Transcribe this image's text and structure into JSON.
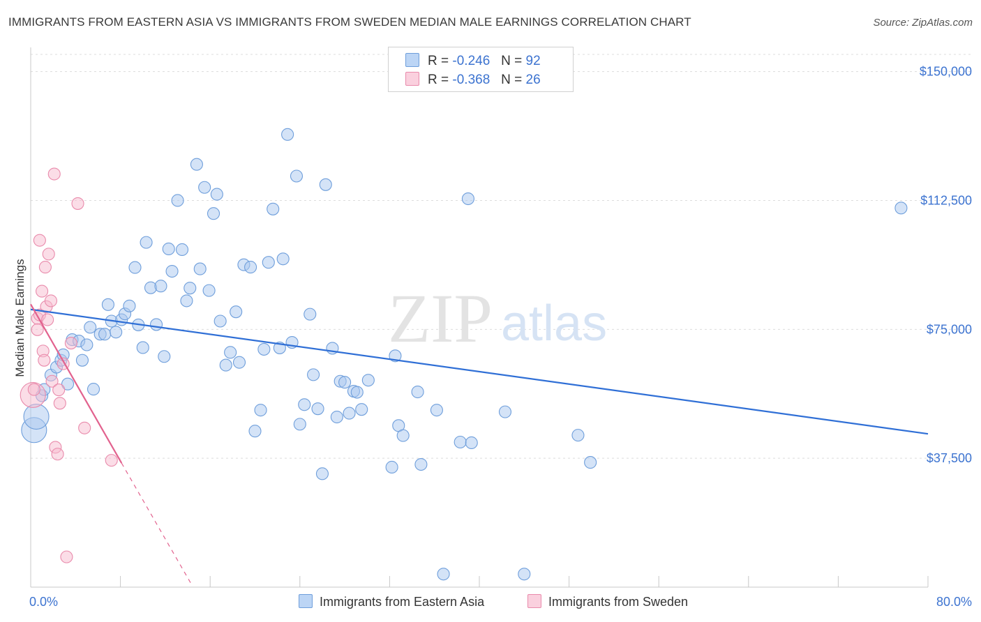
{
  "header": {
    "title": "IMMIGRANTS FROM EASTERN ASIA VS IMMIGRANTS FROM SWEDEN MEDIAN MALE EARNINGS CORRELATION CHART",
    "source": "Source: ZipAtlas.com"
  },
  "watermark": {
    "zip": "ZIP",
    "atlas": "atlas"
  },
  "legend_top": [
    {
      "r_label": "R =",
      "r_value": "-0.246",
      "n_label": "N =",
      "n_value": "92"
    },
    {
      "r_label": "R =",
      "r_value": "-0.368",
      "n_label": "N =",
      "n_value": "26"
    }
  ],
  "legend_bottom": [
    {
      "label": "Immigrants from Eastern Asia"
    },
    {
      "label": "Immigrants from Sweden"
    }
  ],
  "colors": {
    "blue_fill": "#a9c8f0",
    "blue_stroke": "#6e9edb",
    "blue_line": "#2f6fd6",
    "pink_fill": "#f7bcd0",
    "pink_stroke": "#e98aab",
    "pink_line": "#e2628e",
    "tick_label": "#3c73d0",
    "grid": "#dcdcdc"
  },
  "chart_data": {
    "type": "scatter",
    "xlabel": "",
    "ylabel": "Median Male Earnings",
    "xlim": [
      0,
      80
    ],
    "ylim": [
      0,
      155000
    ],
    "x_tick_labels": [
      {
        "value": 0,
        "label": "0.0%"
      },
      {
        "value": 80,
        "label": "80.0%"
      }
    ],
    "y_tick_labels": [
      {
        "value": 37500,
        "label": "$37,500"
      },
      {
        "value": 75000,
        "label": "$75,000"
      },
      {
        "value": 112500,
        "label": "$112,500"
      },
      {
        "value": 150000,
        "label": "$150,000"
      }
    ],
    "grid": true,
    "legend_position": "top-center",
    "series": [
      {
        "name": "Immigrants from Eastern Asia",
        "color": "#a9c8f0",
        "trend": {
          "x": [
            0,
            80
          ],
          "y": [
            80800,
            44600
          ]
        },
        "points": [
          {
            "x": 0.3,
            "y": 45700,
            "big": true
          },
          {
            "x": 0.5,
            "y": 49600,
            "big": true
          },
          {
            "x": 1.0,
            "y": 55700
          },
          {
            "x": 1.2,
            "y": 57500
          },
          {
            "x": 1.8,
            "y": 61700
          },
          {
            "x": 2.3,
            "y": 64000
          },
          {
            "x": 2.7,
            "y": 66000
          },
          {
            "x": 2.9,
            "y": 67600
          },
          {
            "x": 3.3,
            "y": 59100
          },
          {
            "x": 3.7,
            "y": 72000
          },
          {
            "x": 4.3,
            "y": 71600
          },
          {
            "x": 4.6,
            "y": 66000
          },
          {
            "x": 5.0,
            "y": 70500
          },
          {
            "x": 5.6,
            "y": 57600
          },
          {
            "x": 5.3,
            "y": 75600
          },
          {
            "x": 6.2,
            "y": 73600
          },
          {
            "x": 6.6,
            "y": 73600
          },
          {
            "x": 6.9,
            "y": 82200
          },
          {
            "x": 7.2,
            "y": 77400
          },
          {
            "x": 7.6,
            "y": 74200
          },
          {
            "x": 8.1,
            "y": 77800
          },
          {
            "x": 8.4,
            "y": 79500
          },
          {
            "x": 8.8,
            "y": 81800
          },
          {
            "x": 9.3,
            "y": 93000
          },
          {
            "x": 9.6,
            "y": 76300
          },
          {
            "x": 10.0,
            "y": 69700
          },
          {
            "x": 10.3,
            "y": 100300
          },
          {
            "x": 10.7,
            "y": 87100
          },
          {
            "x": 11.2,
            "y": 76400
          },
          {
            "x": 11.6,
            "y": 87600
          },
          {
            "x": 11.9,
            "y": 67100
          },
          {
            "x": 12.3,
            "y": 98400
          },
          {
            "x": 12.6,
            "y": 91900
          },
          {
            "x": 13.1,
            "y": 112500
          },
          {
            "x": 13.5,
            "y": 98200
          },
          {
            "x": 13.9,
            "y": 83300
          },
          {
            "x": 14.2,
            "y": 87000
          },
          {
            "x": 14.8,
            "y": 123000
          },
          {
            "x": 15.1,
            "y": 92600
          },
          {
            "x": 15.5,
            "y": 116300
          },
          {
            "x": 15.9,
            "y": 86300
          },
          {
            "x": 16.3,
            "y": 108700
          },
          {
            "x": 16.6,
            "y": 114300
          },
          {
            "x": 16.9,
            "y": 77400
          },
          {
            "x": 17.4,
            "y": 64600
          },
          {
            "x": 17.8,
            "y": 68300
          },
          {
            "x": 18.3,
            "y": 80100
          },
          {
            "x": 18.6,
            "y": 65400
          },
          {
            "x": 19.0,
            "y": 93800
          },
          {
            "x": 19.6,
            "y": 93100
          },
          {
            "x": 20.0,
            "y": 45400
          },
          {
            "x": 20.5,
            "y": 51500
          },
          {
            "x": 20.8,
            "y": 69200
          },
          {
            "x": 21.2,
            "y": 94500
          },
          {
            "x": 21.6,
            "y": 110000
          },
          {
            "x": 22.2,
            "y": 69600
          },
          {
            "x": 22.5,
            "y": 95500
          },
          {
            "x": 22.9,
            "y": 131700
          },
          {
            "x": 23.3,
            "y": 71200
          },
          {
            "x": 23.7,
            "y": 119600
          },
          {
            "x": 24.0,
            "y": 47400
          },
          {
            "x": 24.4,
            "y": 53100
          },
          {
            "x": 24.9,
            "y": 79400
          },
          {
            "x": 25.2,
            "y": 61800
          },
          {
            "x": 25.6,
            "y": 51900
          },
          {
            "x": 26.0,
            "y": 33000
          },
          {
            "x": 26.3,
            "y": 117100
          },
          {
            "x": 26.9,
            "y": 69500
          },
          {
            "x": 27.3,
            "y": 49500
          },
          {
            "x": 27.6,
            "y": 59900
          },
          {
            "x": 28.0,
            "y": 59600
          },
          {
            "x": 28.4,
            "y": 50600
          },
          {
            "x": 28.8,
            "y": 57000
          },
          {
            "x": 29.1,
            "y": 56700
          },
          {
            "x": 29.5,
            "y": 51700
          },
          {
            "x": 30.1,
            "y": 60200
          },
          {
            "x": 32.2,
            "y": 34900
          },
          {
            "x": 32.5,
            "y": 67300
          },
          {
            "x": 32.8,
            "y": 47000
          },
          {
            "x": 33.2,
            "y": 44100
          },
          {
            "x": 34.5,
            "y": 56800
          },
          {
            "x": 34.8,
            "y": 35700
          },
          {
            "x": 36.8,
            "y": 3800
          },
          {
            "x": 36.2,
            "y": 51500
          },
          {
            "x": 38.3,
            "y": 42200
          },
          {
            "x": 39.3,
            "y": 42000
          },
          {
            "x": 39.0,
            "y": 113000
          },
          {
            "x": 42.3,
            "y": 51000
          },
          {
            "x": 44.0,
            "y": 3800
          },
          {
            "x": 48.8,
            "y": 44200
          },
          {
            "x": 49.9,
            "y": 36300
          },
          {
            "x": 77.6,
            "y": 110300
          }
        ]
      },
      {
        "name": "Immigrants from Sweden",
        "color": "#f7bcd0",
        "trend": {
          "x": [
            0,
            8.1
          ],
          "y": [
            82300,
            36100
          ]
        },
        "trend_extension": {
          "x": [
            8.1,
            14.3
          ],
          "y": [
            36100,
            1000
          ]
        },
        "points": [
          {
            "x": 0.2,
            "y": 55900,
            "big": true
          },
          {
            "x": 0.6,
            "y": 78200
          },
          {
            "x": 0.6,
            "y": 74900
          },
          {
            "x": 0.8,
            "y": 79200
          },
          {
            "x": 0.8,
            "y": 100900
          },
          {
            "x": 1.0,
            "y": 86100
          },
          {
            "x": 1.1,
            "y": 68700
          },
          {
            "x": 1.2,
            "y": 66000
          },
          {
            "x": 1.3,
            "y": 93100
          },
          {
            "x": 1.4,
            "y": 81600
          },
          {
            "x": 1.5,
            "y": 77800
          },
          {
            "x": 1.6,
            "y": 96900
          },
          {
            "x": 1.8,
            "y": 83300
          },
          {
            "x": 1.9,
            "y": 59900
          },
          {
            "x": 2.1,
            "y": 120200
          },
          {
            "x": 2.2,
            "y": 40700
          },
          {
            "x": 2.4,
            "y": 38700
          },
          {
            "x": 2.5,
            "y": 57400
          },
          {
            "x": 2.6,
            "y": 53500
          },
          {
            "x": 2.9,
            "y": 65000
          },
          {
            "x": 3.2,
            "y": 8800
          },
          {
            "x": 3.6,
            "y": 71000
          },
          {
            "x": 4.2,
            "y": 111600
          },
          {
            "x": 4.8,
            "y": 46300
          },
          {
            "x": 7.2,
            "y": 36900
          },
          {
            "x": 0.3,
            "y": 57500
          }
        ]
      }
    ]
  }
}
